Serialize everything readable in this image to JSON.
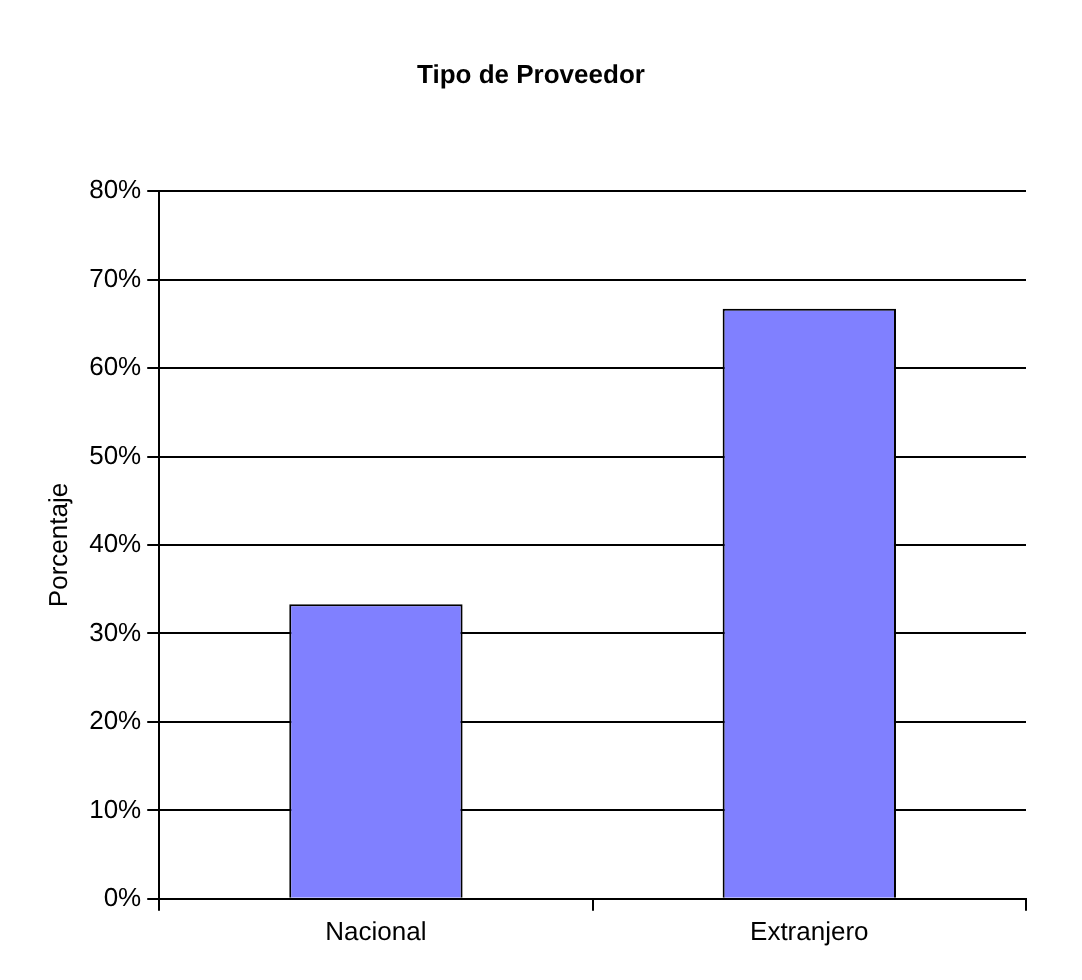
{
  "chart_data": {
    "type": "bar",
    "title": "Tipo de Proveedor",
    "ylabel": "Porcentaje",
    "categories": [
      "Nacional",
      "Extranjero"
    ],
    "values": [
      33.3,
      66.7
    ],
    "color": "#8080ff",
    "ylim": [
      0,
      80
    ],
    "yticks": [
      {
        "value": 0,
        "label": "0%"
      },
      {
        "value": 10,
        "label": "10%"
      },
      {
        "value": 20,
        "label": "20%"
      },
      {
        "value": 30,
        "label": "30%"
      },
      {
        "value": 40,
        "label": "40%"
      },
      {
        "value": 50,
        "label": "50%"
      },
      {
        "value": 60,
        "label": "60%"
      },
      {
        "value": 70,
        "label": "70%"
      },
      {
        "value": 80,
        "label": "80%"
      }
    ],
    "grid": "y",
    "legend": false
  }
}
